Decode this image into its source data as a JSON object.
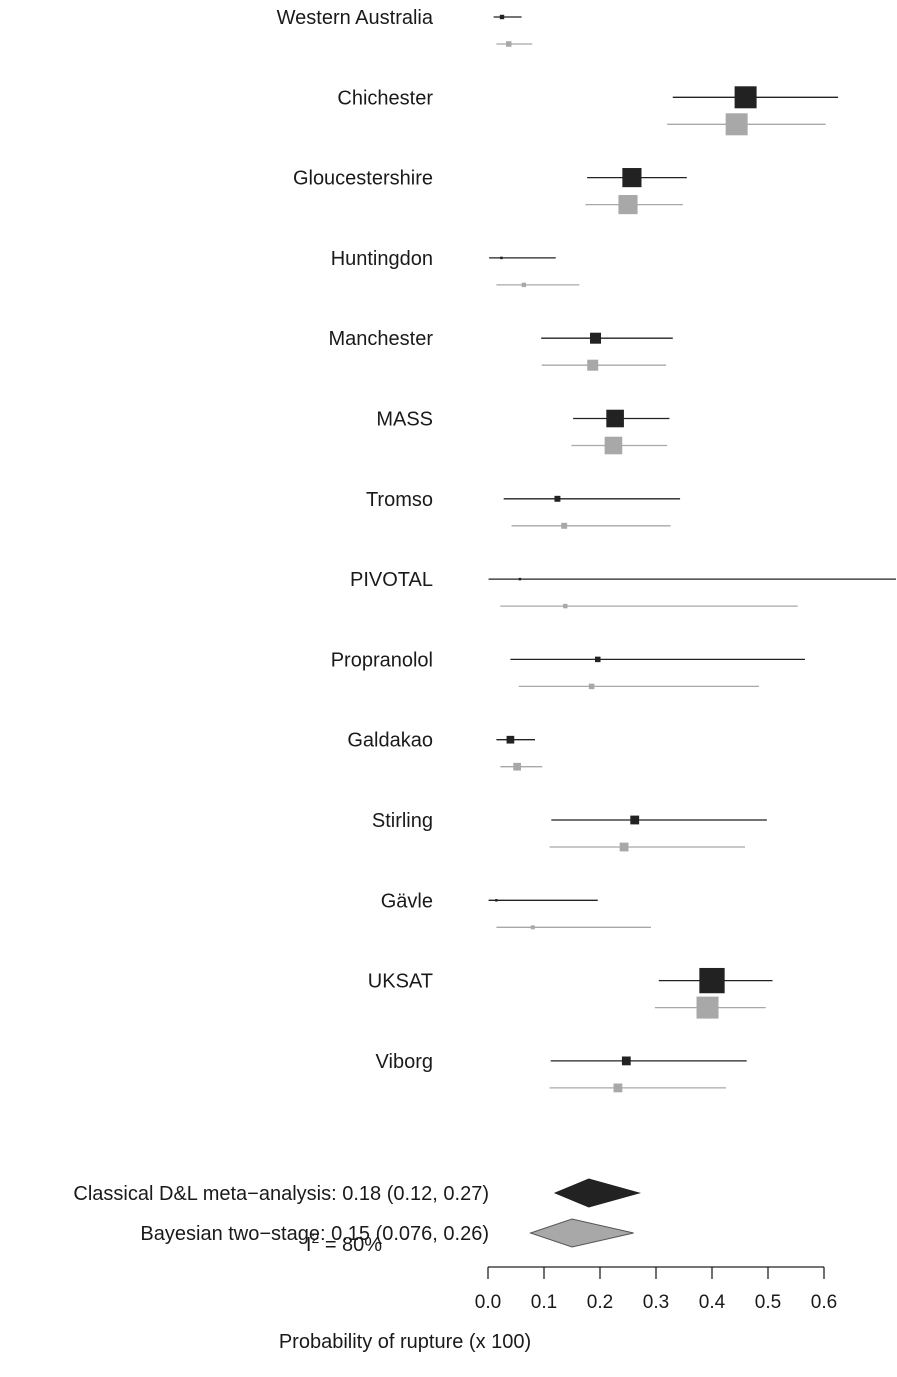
{
  "chart_data": {
    "type": "forest",
    "xlabel": "Probability of rupture (x 100)",
    "xlim": [
      0,
      0.6
    ],
    "ticks": [
      0.0,
      0.1,
      0.2,
      0.3,
      0.4,
      0.5,
      0.6
    ],
    "tick_labels": [
      "0.0",
      "0.1",
      "0.2",
      "0.3",
      "0.4",
      "0.5",
      "0.6"
    ],
    "series_colors": {
      "classical": "#222222",
      "bayesian": "#a8a8a8"
    },
    "studies": [
      {
        "name": "Western Australia",
        "classical": {
          "est": 0.025,
          "lo": 0.01,
          "hi": 0.06,
          "weight": 0.2
        },
        "bayesian": {
          "est": 0.037,
          "lo": 0.015,
          "hi": 0.079,
          "weight": 0.25
        }
      },
      {
        "name": "Chichester",
        "classical": {
          "est": 0.46,
          "lo": 0.33,
          "hi": 0.625,
          "weight": 1.0
        },
        "bayesian": {
          "est": 0.444,
          "lo": 0.32,
          "hi": 0.603,
          "weight": 1.0
        }
      },
      {
        "name": "Gloucestershire",
        "classical": {
          "est": 0.257,
          "lo": 0.177,
          "hi": 0.355,
          "weight": 0.87
        },
        "bayesian": {
          "est": 0.25,
          "lo": 0.174,
          "hi": 0.348,
          "weight": 0.87
        }
      },
      {
        "name": "Huntingdon",
        "classical": {
          "est": 0.024,
          "lo": 0.002,
          "hi": 0.121,
          "weight": 0.08
        },
        "bayesian": {
          "est": 0.064,
          "lo": 0.015,
          "hi": 0.163,
          "weight": 0.2
        }
      },
      {
        "name": "Manchester",
        "classical": {
          "est": 0.192,
          "lo": 0.095,
          "hi": 0.33,
          "weight": 0.5
        },
        "bayesian": {
          "est": 0.187,
          "lo": 0.096,
          "hi": 0.318,
          "weight": 0.5
        }
      },
      {
        "name": "MASS",
        "classical": {
          "est": 0.227,
          "lo": 0.152,
          "hi": 0.324,
          "weight": 0.8
        },
        "bayesian": {
          "est": 0.224,
          "lo": 0.149,
          "hi": 0.32,
          "weight": 0.8
        }
      },
      {
        "name": "Tromso",
        "classical": {
          "est": 0.124,
          "lo": 0.028,
          "hi": 0.343,
          "weight": 0.27
        },
        "bayesian": {
          "est": 0.136,
          "lo": 0.042,
          "hi": 0.326,
          "weight": 0.27
        }
      },
      {
        "name": "PIVOTAL",
        "classical": {
          "est": 0.057,
          "lo": 0.001,
          "hi": 0.735,
          "weight": 0.06
        },
        "bayesian": {
          "est": 0.138,
          "lo": 0.022,
          "hi": 0.553,
          "weight": 0.2
        }
      },
      {
        "name": "Propranolol",
        "classical": {
          "est": 0.196,
          "lo": 0.04,
          "hi": 0.566,
          "weight": 0.25
        },
        "bayesian": {
          "est": 0.185,
          "lo": 0.055,
          "hi": 0.484,
          "weight": 0.25
        }
      },
      {
        "name": "Galdakao",
        "classical": {
          "est": 0.04,
          "lo": 0.015,
          "hi": 0.084,
          "weight": 0.35
        },
        "bayesian": {
          "est": 0.052,
          "lo": 0.022,
          "hi": 0.097,
          "weight": 0.35
        }
      },
      {
        "name": "Stirling",
        "classical": {
          "est": 0.262,
          "lo": 0.113,
          "hi": 0.498,
          "weight": 0.4
        },
        "bayesian": {
          "est": 0.243,
          "lo": 0.11,
          "hi": 0.459,
          "weight": 0.4
        }
      },
      {
        "name": "Gävle",
        "classical": {
          "est": 0.015,
          "lo": 0.001,
          "hi": 0.196,
          "weight": 0.06
        },
        "bayesian": {
          "est": 0.08,
          "lo": 0.015,
          "hi": 0.291,
          "weight": 0.18
        }
      },
      {
        "name": "UKSAT",
        "classical": {
          "est": 0.4,
          "lo": 0.305,
          "hi": 0.508,
          "weight": 1.15
        },
        "bayesian": {
          "est": 0.392,
          "lo": 0.298,
          "hi": 0.496,
          "weight": 1.0
        }
      },
      {
        "name": "Viborg",
        "classical": {
          "est": 0.247,
          "lo": 0.112,
          "hi": 0.462,
          "weight": 0.4
        },
        "bayesian": {
          "est": 0.232,
          "lo": 0.11,
          "hi": 0.425,
          "weight": 0.4
        }
      }
    ],
    "summaries": [
      {
        "label": "Classical D&L meta−analysis: 0.18 (0.12, 0.27)",
        "series": "classical",
        "est": 0.18,
        "lo": 0.12,
        "hi": 0.27
      },
      {
        "label": "Bayesian two−stage: 0.15 (0.076, 0.26)",
        "series": "bayesian",
        "est": 0.15,
        "lo": 0.076,
        "hi": 0.26
      }
    ],
    "heterogeneity": {
      "symbol": "I",
      "superscript": "2",
      "text": " = 80%"
    }
  }
}
